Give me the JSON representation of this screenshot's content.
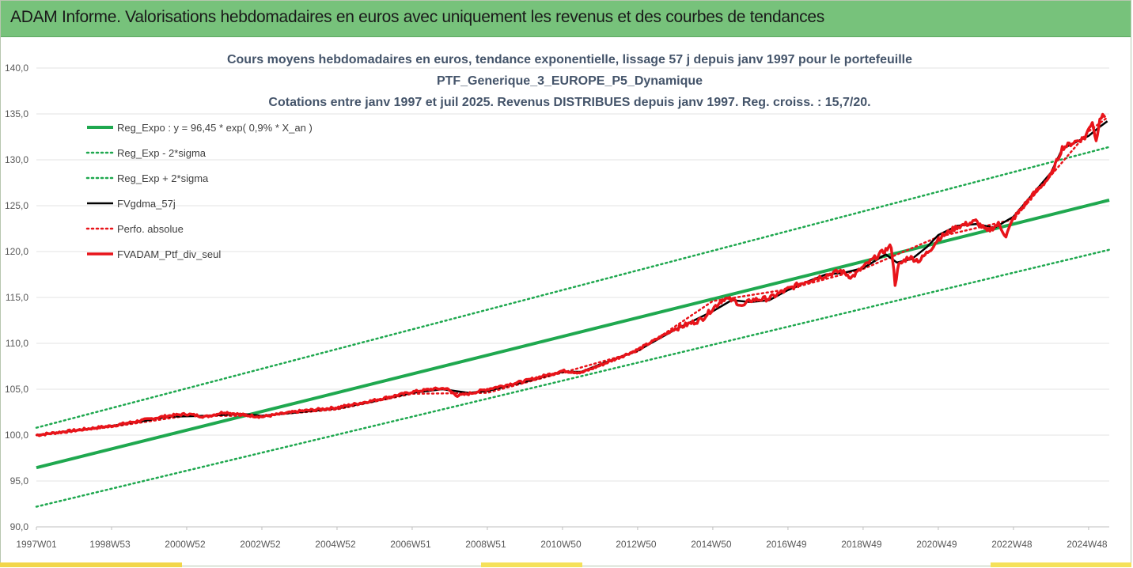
{
  "header": {
    "title": "ADAM Informe. Valorisations hebdomadaires en euros avec uniquement les revenus et des courbes de tendances"
  },
  "colors": {
    "header_bg": "#77c27b",
    "title_text": "#44546a",
    "reg_green": "#1fa84f",
    "red": "#e8141a",
    "black": "#000000",
    "axis_text": "#595959",
    "grid": "#e3e3e3"
  },
  "chart_data": {
    "type": "line",
    "title_lines": [
      "Cours moyens hebdomadaires en euros, tendance exponentielle, lissage 57 j depuis janv 1997 pour le portefeuille",
      "PTF_Generique_3_EUROPE_P5_Dynamique",
      "Cotations entre janv 1997 et juil 2025. Revenus DISTRIBUES depuis janv 1997. Reg. croiss. : 15,7/20."
    ],
    "ylim": [
      90,
      140
    ],
    "yticks": [
      "140,0",
      "135,0",
      "130,0",
      "125,0",
      "120,0",
      "115,0",
      "110,0",
      "105,0",
      "100,0",
      "95,0",
      "90,0"
    ],
    "ytick_values": [
      140,
      135,
      130,
      125,
      120,
      115,
      110,
      105,
      100,
      95,
      90
    ],
    "xlim": [
      1997.0,
      2025.55
    ],
    "xticks": [
      "1997W01",
      "1998W53",
      "2000W52",
      "2002W52",
      "2004W52",
      "2006W51",
      "2008W51",
      "2010W50",
      "2012W50",
      "2014W50",
      "2016W49",
      "2018W49",
      "2020W49",
      "2022W48",
      "2024W48"
    ],
    "xtick_positions": [
      1997.0,
      1999.0,
      2001.0,
      2003.0,
      2005.0,
      2007.0,
      2009.0,
      2011.0,
      2013.0,
      2015.0,
      2017.0,
      2019.0,
      2021.0,
      2023.0,
      2025.0
    ],
    "grid": "horizontal",
    "legend_position": "top-left",
    "series": [
      {
        "name": "Reg_Expo : y = 96,45 * exp( 0,9% *  X_an )",
        "style": "solid-green",
        "x": [
          1997.0,
          2025.55
        ],
        "values": [
          96.45,
          125.6
        ]
      },
      {
        "name": "Reg_Exp - 2*sigma",
        "style": "dotted-green",
        "x": [
          1997.0,
          2025.55
        ],
        "values": [
          92.2,
          120.2
        ]
      },
      {
        "name": "Reg_Exp + 2*sigma",
        "style": "dotted-green",
        "x": [
          1997.0,
          2025.55
        ],
        "values": [
          100.8,
          131.4
        ]
      },
      {
        "name": "FVgdma_57j",
        "style": "solid-black",
        "x": [
          1997.0,
          1998.0,
          1999.0,
          1999.8,
          2000.5,
          2001.5,
          2002.5,
          2003.0,
          2004.0,
          2005.0,
          2006.0,
          2007.0,
          2007.8,
          2008.5,
          2009.0,
          2010.0,
          2011.0,
          2011.5,
          2012.0,
          2013.0,
          2014.0,
          2015.0,
          2015.5,
          2016.0,
          2016.5,
          2017.0,
          2017.5,
          2018.0,
          2018.5,
          2019.0,
          2019.6,
          2019.9,
          2020.3,
          2020.7,
          2021.0,
          2021.5,
          2022.0,
          2022.5,
          2023.0,
          2023.5,
          2024.0,
          2024.3,
          2024.6,
          2025.0,
          2025.3,
          2025.5
        ],
        "values": [
          100.0,
          100.5,
          101.0,
          101.5,
          102.0,
          102.1,
          102.3,
          102.1,
          102.5,
          102.9,
          103.7,
          104.6,
          105.0,
          104.6,
          104.8,
          105.8,
          106.9,
          106.9,
          107.7,
          109.2,
          111.5,
          113.5,
          114.7,
          114.5,
          114.7,
          115.8,
          116.7,
          117.5,
          117.7,
          118.2,
          119.7,
          118.8,
          119.2,
          120.5,
          121.8,
          122.8,
          123.0,
          122.6,
          123.8,
          126.2,
          128.6,
          131.2,
          131.8,
          132.6,
          133.6,
          134.2
        ]
      },
      {
        "name": "Perfo. absolue",
        "style": "dotted-red",
        "x": [
          1997.0,
          1999.0,
          2001.0,
          2003.0,
          2005.0,
          2007.0,
          2009.0,
          2011.0,
          2013.0,
          2015.0,
          2017.0,
          2019.0,
          2021.0,
          2023.0,
          2025.0,
          2025.5
        ],
        "values": [
          100.0,
          100.9,
          102.1,
          102.1,
          102.8,
          104.5,
          104.6,
          106.8,
          109.1,
          114.6,
          115.9,
          118.1,
          121.6,
          123.5,
          133.1,
          134.6
        ]
      },
      {
        "name": "FVADAM_Ptf_div_seul",
        "style": "solid-red",
        "x": [
          1997.0,
          1998.0,
          1999.0,
          1999.8,
          2000.5,
          2001.0,
          2001.5,
          2002.0,
          2002.5,
          2003.0,
          2004.0,
          2005.0,
          2006.0,
          2007.0,
          2007.5,
          2007.9,
          2008.2,
          2008.5,
          2009.0,
          2010.0,
          2011.0,
          2011.5,
          2012.0,
          2013.0,
          2014.0,
          2014.7,
          2015.0,
          2015.3,
          2015.6,
          2015.8,
          2016.0,
          2016.5,
          2017.0,
          2017.5,
          2018.0,
          2018.4,
          2018.7,
          2019.0,
          2019.5,
          2019.75,
          2019.85,
          2019.95,
          2020.2,
          2020.5,
          2020.8,
          2021.0,
          2021.5,
          2022.0,
          2022.3,
          2022.6,
          2022.8,
          2023.0,
          2023.5,
          2024.0,
          2024.3,
          2024.6,
          2024.9,
          2025.1,
          2025.2,
          2025.3,
          2025.45
        ],
        "values": [
          100.0,
          100.5,
          101.0,
          101.6,
          102.1,
          102.3,
          102.0,
          102.5,
          102.2,
          102.0,
          102.6,
          103.0,
          103.8,
          104.7,
          105.0,
          105.1,
          104.3,
          104.5,
          105.0,
          105.9,
          107.0,
          106.8,
          107.6,
          109.3,
          111.6,
          112.6,
          113.8,
          114.9,
          114.6,
          114.0,
          114.7,
          114.9,
          115.9,
          116.8,
          117.4,
          117.9,
          117.2,
          118.3,
          119.9,
          120.6,
          116.5,
          118.5,
          119.4,
          119.0,
          120.3,
          121.4,
          122.7,
          123.3,
          122.2,
          123.0,
          121.7,
          123.6,
          126.1,
          128.3,
          131.3,
          131.9,
          132.4,
          134.2,
          132.0,
          134.6,
          134.8
        ]
      }
    ],
    "legend_entries": [
      "Reg_Expo : y = 96,45 * exp( 0,9% *  X_an )",
      "Reg_Exp - 2*sigma",
      "Reg_Exp + 2*sigma",
      "FVgdma_57j",
      "Perfo. absolue",
      "FVADAM_Ptf_div_seul"
    ]
  }
}
